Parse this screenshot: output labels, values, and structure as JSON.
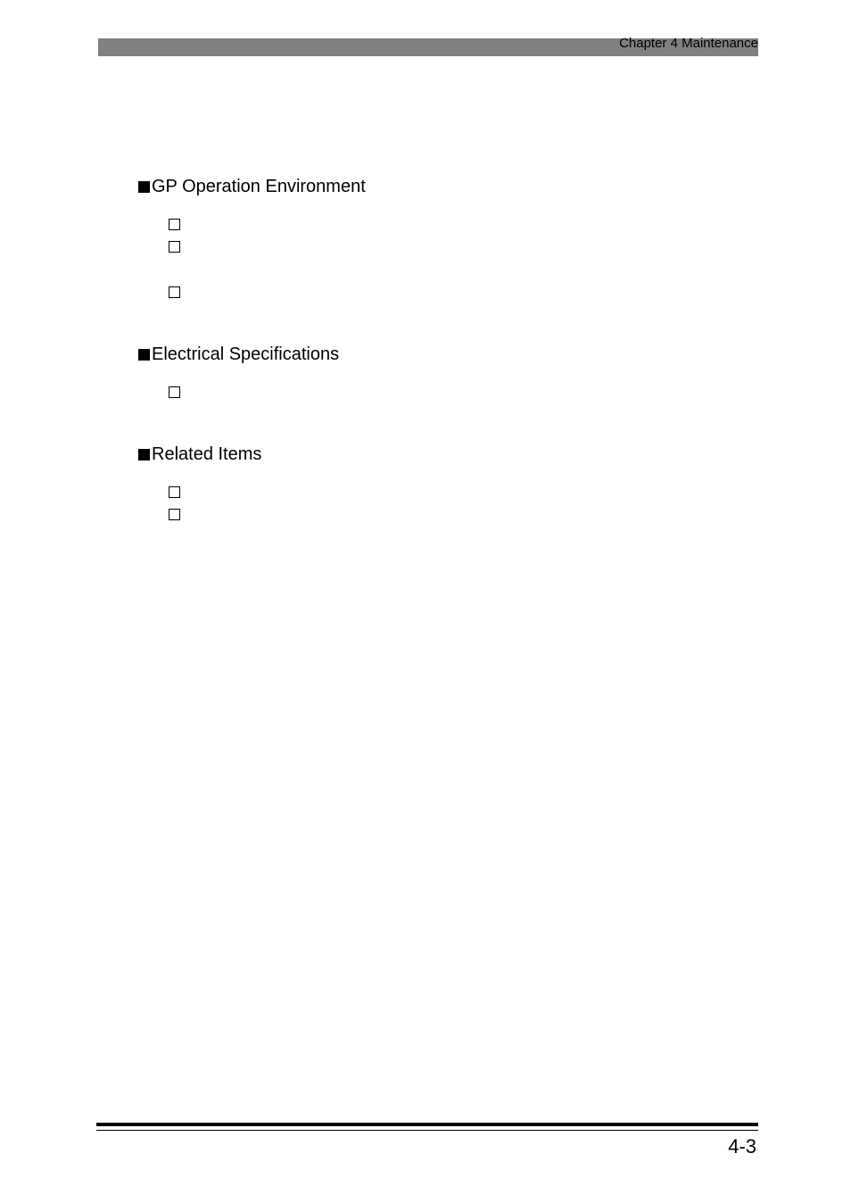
{
  "header": {
    "chapter": "Chapter 4 Maintenance"
  },
  "sections": [
    {
      "title": "GP Operation Environment",
      "checkboxes": [
        {
          "spaced": false
        },
        {
          "spaced": false
        },
        {
          "spaced": true
        }
      ]
    },
    {
      "title": "Electrical Specifications",
      "checkboxes": [
        {
          "spaced": false
        }
      ]
    },
    {
      "title": "Related Items",
      "checkboxes": [
        {
          "spaced": false
        },
        {
          "spaced": false
        }
      ]
    }
  ],
  "footer": {
    "page_number": "4-3"
  },
  "colors": {
    "band": "#808080",
    "text": "#000000",
    "page_bg": "#ffffff"
  }
}
